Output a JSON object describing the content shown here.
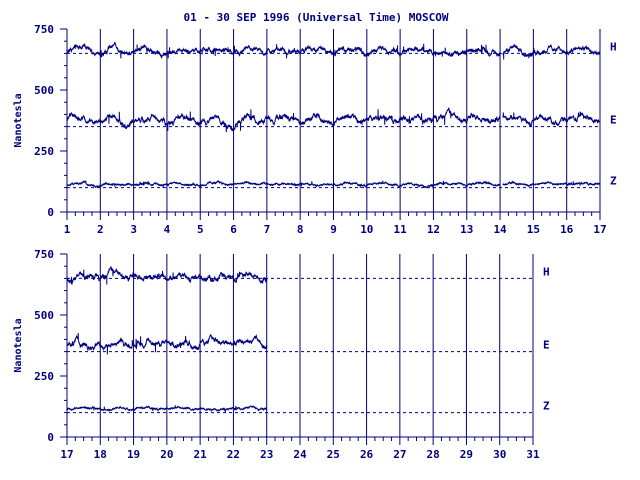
{
  "chart_data": {
    "type": "line",
    "title": "01 - 30 SEP 1996 (Universal Time) MOSCOW",
    "ylabel": "Nanotesla",
    "ylim": [
      0,
      750
    ],
    "yticks": [
      "0",
      "250",
      "500",
      "750"
    ],
    "color": "#00007f",
    "panels": [
      {
        "xrange": [
          1,
          17
        ],
        "xticks": [
          "1",
          "2",
          "3",
          "4",
          "5",
          "6",
          "7",
          "8",
          "9",
          "10",
          "11",
          "12",
          "13",
          "14",
          "15",
          "16",
          "17"
        ],
        "data_end": 17,
        "gaps": [
          [
            14.0,
            14.08
          ]
        ],
        "series": [
          {
            "name": "H",
            "baseline": 650,
            "level": 660,
            "amp": 12
          },
          {
            "name": "E",
            "baseline": 350,
            "level": 380,
            "amp": 15
          },
          {
            "name": "Z",
            "baseline": 100,
            "level": 115,
            "amp": 5
          }
        ]
      },
      {
        "xrange": [
          17,
          31
        ],
        "xticks": [
          "17",
          "18",
          "19",
          "20",
          "21",
          "22",
          "23",
          "24",
          "25",
          "26",
          "27",
          "28",
          "29",
          "30",
          "31"
        ],
        "data_end": 23,
        "gaps": [],
        "series": [
          {
            "name": "H",
            "baseline": 650,
            "level": 655,
            "amp": 15
          },
          {
            "name": "E",
            "baseline": 350,
            "level": 385,
            "amp": 15
          },
          {
            "name": "Z",
            "baseline": 100,
            "level": 118,
            "amp": 5
          }
        ]
      }
    ]
  }
}
